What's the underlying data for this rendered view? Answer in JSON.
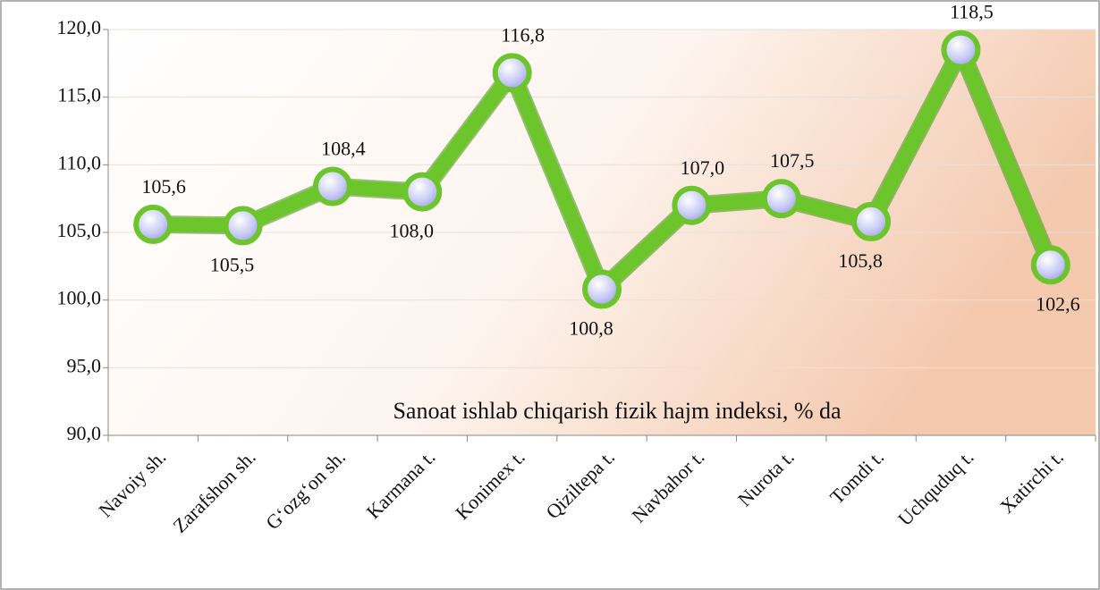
{
  "chart_data": {
    "type": "line",
    "annotation": "Sanoat ishlab chiqarish fizik hajm indeksi, % da",
    "categories": [
      "Navoiy sh.",
      "Zarafshon sh.",
      "G‘ozg‘on sh.",
      "Karmana t.",
      "Konimex t.",
      "Qiziltepa t.",
      "Navbahor t.",
      "Nurota t.",
      "Tomdi t.",
      "Uchquduq t.",
      "Xatirchi t."
    ],
    "series": [
      {
        "color": "#6cc52a",
        "values": [
          105.6,
          105.5,
          108.4,
          108.0,
          116.8,
          100.8,
          107.0,
          107.5,
          105.8,
          118.5,
          102.6
        ],
        "value_labels": [
          "105,6",
          "105,5",
          "108,4",
          "108,0",
          "116,8",
          "100,8",
          "107,0",
          "107,5",
          "105,8",
          "118,5",
          "102,6"
        ]
      }
    ],
    "ylim": [
      90,
      120
    ],
    "yticks": [
      {
        "value": 90,
        "label": "90,0"
      },
      {
        "value": 95,
        "label": "95,0"
      },
      {
        "value": 100,
        "label": "100,0"
      },
      {
        "value": 105,
        "label": "105,0"
      },
      {
        "value": 110,
        "label": "110,0"
      },
      {
        "value": 115,
        "label": "115,0"
      },
      {
        "value": 120,
        "label": "120,0"
      }
    ],
    "grid": true
  }
}
